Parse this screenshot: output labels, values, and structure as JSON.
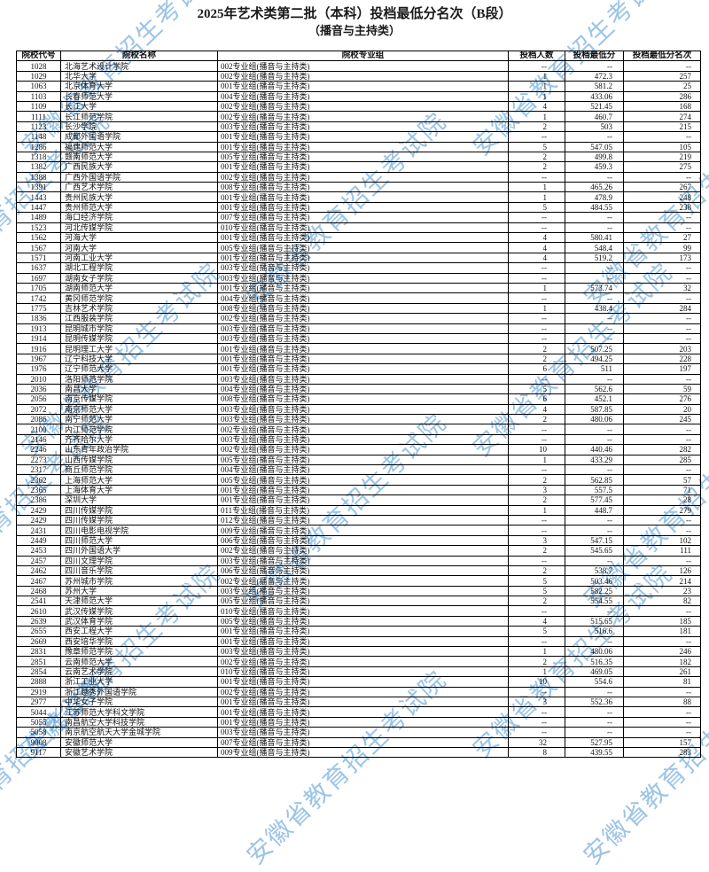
{
  "page": {
    "title": "2025年艺术类第二批（本科）投档最低分名次（B段）",
    "subtitle": "（播音与主持类）"
  },
  "watermark": {
    "text": "安徽省教育招生考试院",
    "color": "#5c9ed6"
  },
  "table": {
    "headers": [
      "院校代号",
      "院校名称",
      "院校专业组",
      "投档人数",
      "投档最低分",
      "投档最低分名次"
    ],
    "empty_marker": "--",
    "rows": [
      [
        "1028",
        "北海艺术设计学院",
        "002专业组(播音与主持类)",
        "--",
        "--",
        "--"
      ],
      [
        "1029",
        "北华大学",
        "002专业组(播音与主持类)",
        "1",
        "472.3",
        "257"
      ],
      [
        "1063",
        "北京体育大学",
        "001专业组(播音与主持类)",
        "1",
        "581.2",
        "25"
      ],
      [
        "1103",
        "长春师范大学",
        "004专业组(播音与主持类)",
        "1",
        "433.06",
        "286"
      ],
      [
        "1109",
        "长江大学",
        "002专业组(播音与主持类)",
        "4",
        "521.45",
        "168"
      ],
      [
        "1111",
        "长江师范学院",
        "002专业组(播音与主持类)",
        "1",
        "460.7",
        "274"
      ],
      [
        "1123",
        "长沙学院",
        "003专业组(播音与主持类)",
        "2",
        "503",
        "215"
      ],
      [
        "1148",
        "成都外国语学院",
        "001专业组(播音与主持类)",
        "--",
        "--",
        "--"
      ],
      [
        "1286",
        "福建师范大学",
        "001专业组(播音与主持类)",
        "5",
        "547.05",
        "105"
      ],
      [
        "1318",
        "赣南师范大学",
        "005专业组(播音与主持类)",
        "2",
        "499.8",
        "219"
      ],
      [
        "1382",
        "广西民族大学",
        "001专业组(播音与主持类)",
        "2",
        "459.3",
        "275"
      ],
      [
        "1388",
        "广西外国语学院",
        "002专业组(播音与主持类)",
        "--",
        "--",
        "--"
      ],
      [
        "1391",
        "广西艺术学院",
        "008专业组(播音与主持类)",
        "1",
        "465.26",
        "267"
      ],
      [
        "1443",
        "贵州民族大学",
        "001专业组(播音与主持类)",
        "1",
        "478.9",
        "248"
      ],
      [
        "1447",
        "贵州师范大学",
        "001专业组(播音与主持类)",
        "5",
        "484.55",
        "238"
      ],
      [
        "1489",
        "海口经济学院",
        "007专业组(播音与主持类)",
        "--",
        "--",
        "--"
      ],
      [
        "1523",
        "河北传媒学院",
        "010专业组(播音与主持类)",
        "--",
        "--",
        "--"
      ],
      [
        "1562",
        "河海大学",
        "001专业组(播音与主持类)",
        "4",
        "580.41",
        "27"
      ],
      [
        "1567",
        "河南大学",
        "005专业组(播音与主持类)",
        "4",
        "548.4",
        "99"
      ],
      [
        "1571",
        "河南工业大学",
        "001专业组(播音与主持类)",
        "4",
        "519.2",
        "173"
      ],
      [
        "1637",
        "湖北工程学院",
        "003专业组(播音与主持类)",
        "--",
        "--",
        "--"
      ],
      [
        "1697",
        "湖南女子学院",
        "003专业组(播音与主持类)",
        "--",
        "--",
        "--"
      ],
      [
        "1705",
        "湖南师范大学",
        "001专业组(播音与主持类)",
        "1",
        "573.74",
        "32"
      ],
      [
        "1742",
        "黄冈师范学院",
        "004专业组(播音与主持类)",
        "--",
        "--",
        "--"
      ],
      [
        "1775",
        "吉林艺术学院",
        "008专业组(播音与主持类)",
        "1",
        "438.4",
        "284"
      ],
      [
        "1836",
        "江西服装学院",
        "002专业组(播音与主持类)",
        "--",
        "--",
        "--"
      ],
      [
        "1913",
        "昆明城市学院",
        "003专业组(播音与主持类)",
        "--",
        "--",
        "--"
      ],
      [
        "1914",
        "昆明传媒学院",
        "003专业组(播音与主持类)",
        "--",
        "--",
        "--"
      ],
      [
        "1916",
        "昆明理工大学",
        "001专业组(播音与主持类)",
        "2",
        "507.25",
        "203"
      ],
      [
        "1967",
        "辽宁科技大学",
        "001专业组(播音与主持类)",
        "2",
        "494.25",
        "228"
      ],
      [
        "1976",
        "辽宁师范大学",
        "001专业组(播音与主持类)",
        "6",
        "511",
        "197"
      ],
      [
        "2010",
        "洛阳师范学院",
        "003专业组(播音与主持类)",
        "--",
        "--",
        "--"
      ],
      [
        "2036",
        "南昌大学",
        "004专业组(播音与主持类)",
        "5",
        "562.6",
        "59"
      ],
      [
        "2056",
        "南京传媒学院",
        "008专业组(播音与主持类)",
        "6",
        "452.1",
        "276"
      ],
      [
        "2072",
        "南京师范大学",
        "003专业组(播音与主持类)",
        "4",
        "587.85",
        "20"
      ],
      [
        "2086",
        "南宁师范大学",
        "003专业组(播音与主持类)",
        "2",
        "480.06",
        "245"
      ],
      [
        "2100",
        "内江师范学院",
        "002专业组(播音与主持类)",
        "--",
        "--",
        "--"
      ],
      [
        "2146",
        "齐齐哈尔大学",
        "003专业组(播音与主持类)",
        "--",
        "--",
        "--"
      ],
      [
        "2246",
        "山东青年政治学院",
        "002专业组(播音与主持类)",
        "10",
        "440.46",
        "282"
      ],
      [
        "2273",
        "山西传媒学院",
        "005专业组(播音与主持类)",
        "1",
        "433.29",
        "285"
      ],
      [
        "2317",
        "商丘师范学院",
        "004专业组(播音与主持类)",
        "--",
        "--",
        "--"
      ],
      [
        "2362",
        "上海师范大学",
        "005专业组(播音与主持类)",
        "2",
        "562.85",
        "57"
      ],
      [
        "2365",
        "上海体育大学",
        "001专业组(播音与主持类)",
        "3",
        "557.5",
        "71"
      ],
      [
        "2386",
        "深圳大学",
        "001专业组(播音与主持类)",
        "2",
        "577.45",
        "28"
      ],
      [
        "2429",
        "四川传媒学院",
        "011专业组(播音与主持类)",
        "1",
        "448.7",
        "279"
      ],
      [
        "2429",
        "四川传媒学院",
        "012专业组(播音与主持类)",
        "--",
        "--",
        "--"
      ],
      [
        "2431",
        "四川电影电视学院",
        "009专业组(播音与主持类)",
        "--",
        "--",
        "--"
      ],
      [
        "2449",
        "四川师范大学",
        "006专业组(播音与主持类)",
        "3",
        "547.15",
        "102"
      ],
      [
        "2453",
        "四川外国语大学",
        "002专业组(播音与主持类)",
        "2",
        "545.65",
        "111"
      ],
      [
        "2457",
        "四川文理学院",
        "003专业组(播音与主持类)",
        "--",
        "--",
        "--"
      ],
      [
        "2462",
        "四川音乐学院",
        "006专业组(播音与主持类)",
        "2",
        "538.7",
        "126"
      ],
      [
        "2467",
        "苏州城市学院",
        "002专业组(播音与主持类)",
        "5",
        "503.46",
        "214"
      ],
      [
        "2468",
        "苏州大学",
        "003专业组(播音与主持类)",
        "5",
        "582.25",
        "23"
      ],
      [
        "2541",
        "天津师范大学",
        "005专业组(播音与主持类)",
        "2",
        "554.55",
        "82"
      ],
      [
        "2610",
        "武汉传媒学院",
        "010专业组(播音与主持类)",
        "--",
        "--",
        "--"
      ],
      [
        "2639",
        "武汉体育学院",
        "005专业组(播音与主持类)",
        "4",
        "515.65",
        "185"
      ],
      [
        "2655",
        "西安工程大学",
        "001专业组(播音与主持类)",
        "5",
        "516.6",
        "181"
      ],
      [
        "2669",
        "西安培华学院",
        "001专业组(播音与主持类)",
        "--",
        "--",
        "--"
      ],
      [
        "2831",
        "豫章师范学院",
        "003专业组(播音与主持类)",
        "1",
        "480.06",
        "246"
      ],
      [
        "2851",
        "云南师范大学",
        "002专业组(播音与主持类)",
        "2",
        "516.35",
        "182"
      ],
      [
        "2854",
        "云南艺术学院",
        "010专业组(播音与主持类)",
        "1",
        "469.05",
        "261"
      ],
      [
        "2888",
        "浙江工业大学",
        "001专业组(播音与主持类)",
        "10",
        "554.6",
        "81"
      ],
      [
        "2919",
        "浙江越秀外国语学院",
        "002专业组(播音与主持类)",
        "--",
        "--",
        "--"
      ],
      [
        "2977",
        "中华女子学院",
        "001专业组(播音与主持类)",
        "3",
        "552.36",
        "88"
      ],
      [
        "5044",
        "江苏师范大学科文学院",
        "001专业组(播音与主持类)",
        "--",
        "--",
        "--"
      ],
      [
        "5055",
        "南昌航空大学科技学院",
        "001专业组(播音与主持类)",
        "--",
        "--",
        "--"
      ],
      [
        "5058",
        "南京航空航天大学金城学院",
        "003专业组(播音与主持类)",
        "--",
        "--",
        "--"
      ],
      [
        "9008",
        "安徽师范大学",
        "007专业组(播音与主持类)",
        "32",
        "527.95",
        "157"
      ],
      [
        "9117",
        "安徽艺术学院",
        "009专业组(播音与主持类)",
        "8",
        "439.55",
        "283"
      ]
    ]
  }
}
